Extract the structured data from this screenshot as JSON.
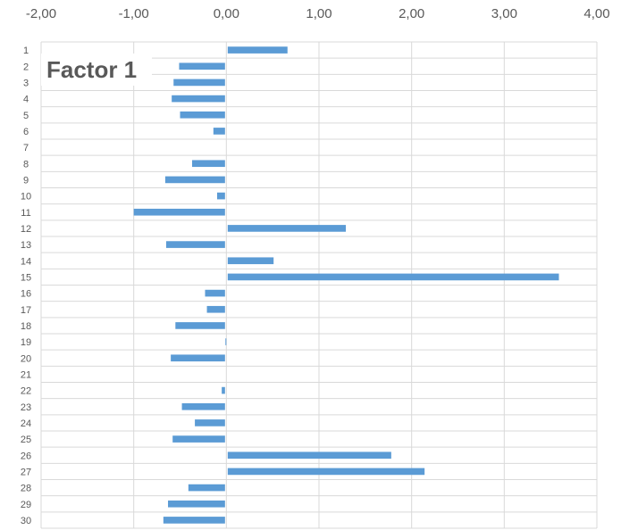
{
  "chart_data": {
    "type": "bar",
    "orientation": "horizontal",
    "title": "Factor 1",
    "xlabel": "",
    "ylabel": "",
    "xlim": [
      -2,
      4
    ],
    "x_ticks": [
      -2,
      -1,
      0,
      1,
      2,
      3,
      4
    ],
    "x_tick_labels": [
      "-2,00",
      "-1,00",
      "0,00",
      "1,00",
      "2,00",
      "3,00",
      "4,00"
    ],
    "x_axis_position": "top",
    "grid": true,
    "legend": "none",
    "bar_color": "#5b9bd5",
    "categories": [
      "1",
      "2",
      "3",
      "4",
      "5",
      "6",
      "7",
      "8",
      "9",
      "10",
      "11",
      "12",
      "13",
      "14",
      "15",
      "16",
      "17",
      "18",
      "19",
      "20",
      "21",
      "22",
      "23",
      "24",
      "25",
      "26",
      "27",
      "28",
      "29",
      "30"
    ],
    "values": [
      0.66,
      -0.51,
      -0.57,
      -0.59,
      -0.5,
      -0.14,
      0.0,
      -0.37,
      -0.66,
      -0.1,
      -1.0,
      1.29,
      -0.65,
      0.51,
      3.59,
      -0.23,
      -0.21,
      -0.55,
      -0.01,
      -0.6,
      0.0,
      -0.05,
      -0.48,
      -0.34,
      -0.58,
      1.78,
      2.14,
      -0.41,
      -0.63,
      -0.68
    ]
  }
}
